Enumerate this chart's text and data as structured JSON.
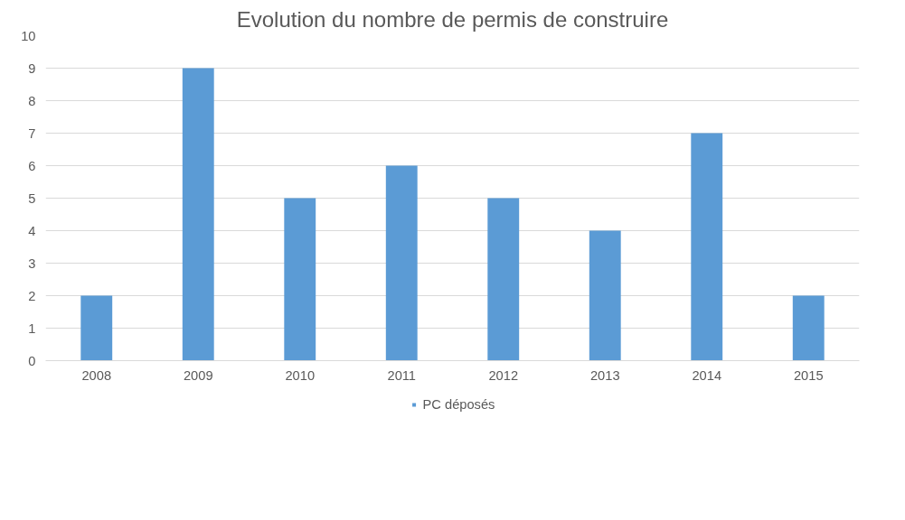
{
  "chart_data": {
    "type": "bar",
    "title": "Evolution du nombre de permis de construire",
    "categories": [
      "2008",
      "2009",
      "2010",
      "2011",
      "2012",
      "2013",
      "2014",
      "2015"
    ],
    "series": [
      {
        "name": "PC déposés",
        "color": "#5b9bd5",
        "values": [
          2,
          9,
          5,
          6,
          5,
          4,
          7,
          2
        ]
      }
    ],
    "ylim": [
      0,
      10
    ],
    "yticks": [
      0,
      1,
      2,
      3,
      4,
      5,
      6,
      7,
      8,
      9,
      10
    ],
    "grid": "y",
    "legend": "bottom"
  }
}
